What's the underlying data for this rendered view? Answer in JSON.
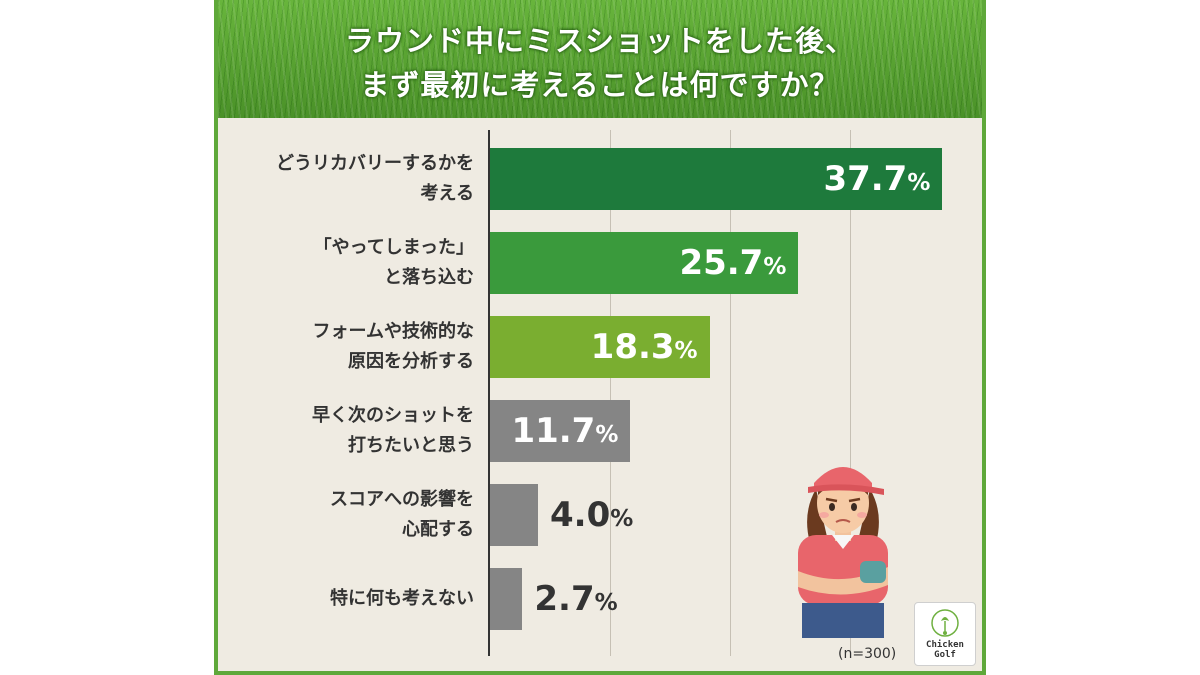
{
  "title": {
    "line1": "ラウンド中にミスショットをした後、",
    "line2": "まず最初に考えることは何ですか？"
  },
  "note": "(n=300)",
  "logo": {
    "line1": "Chicken",
    "line2": "Golf"
  },
  "chart_data": {
    "type": "bar",
    "orientation": "horizontal",
    "categories": [
      [
        "どうリカバリーするかを",
        "考える"
      ],
      [
        "「やってしまった」",
        "と落ち込む"
      ],
      [
        "フォームや技術的な",
        "原因を分析する"
      ],
      [
        "早く次のショットを",
        "打ちたいと思う"
      ],
      [
        "スコアへの影響を",
        "心配する"
      ],
      [
        "特に何も考えない"
      ]
    ],
    "values": [
      37.7,
      25.7,
      18.3,
      11.7,
      4.0,
      2.7
    ],
    "value_labels": [
      {
        "num": "37.7",
        "unit": "%"
      },
      {
        "num": "25.7",
        "unit": "%"
      },
      {
        "num": "18.3",
        "unit": "%"
      },
      {
        "num": "11.7",
        "unit": "%"
      },
      {
        "num": "4.0",
        "unit": "%"
      },
      {
        "num": "2.7",
        "unit": "%"
      }
    ],
    "colors": [
      "#1e7a3c",
      "#3a9a3c",
      "#7aae30",
      "#858585",
      "#858585",
      "#858585"
    ],
    "xlim": [
      0,
      40
    ],
    "grid_values": [
      10,
      20,
      30
    ],
    "grid": true,
    "legend": false
  }
}
